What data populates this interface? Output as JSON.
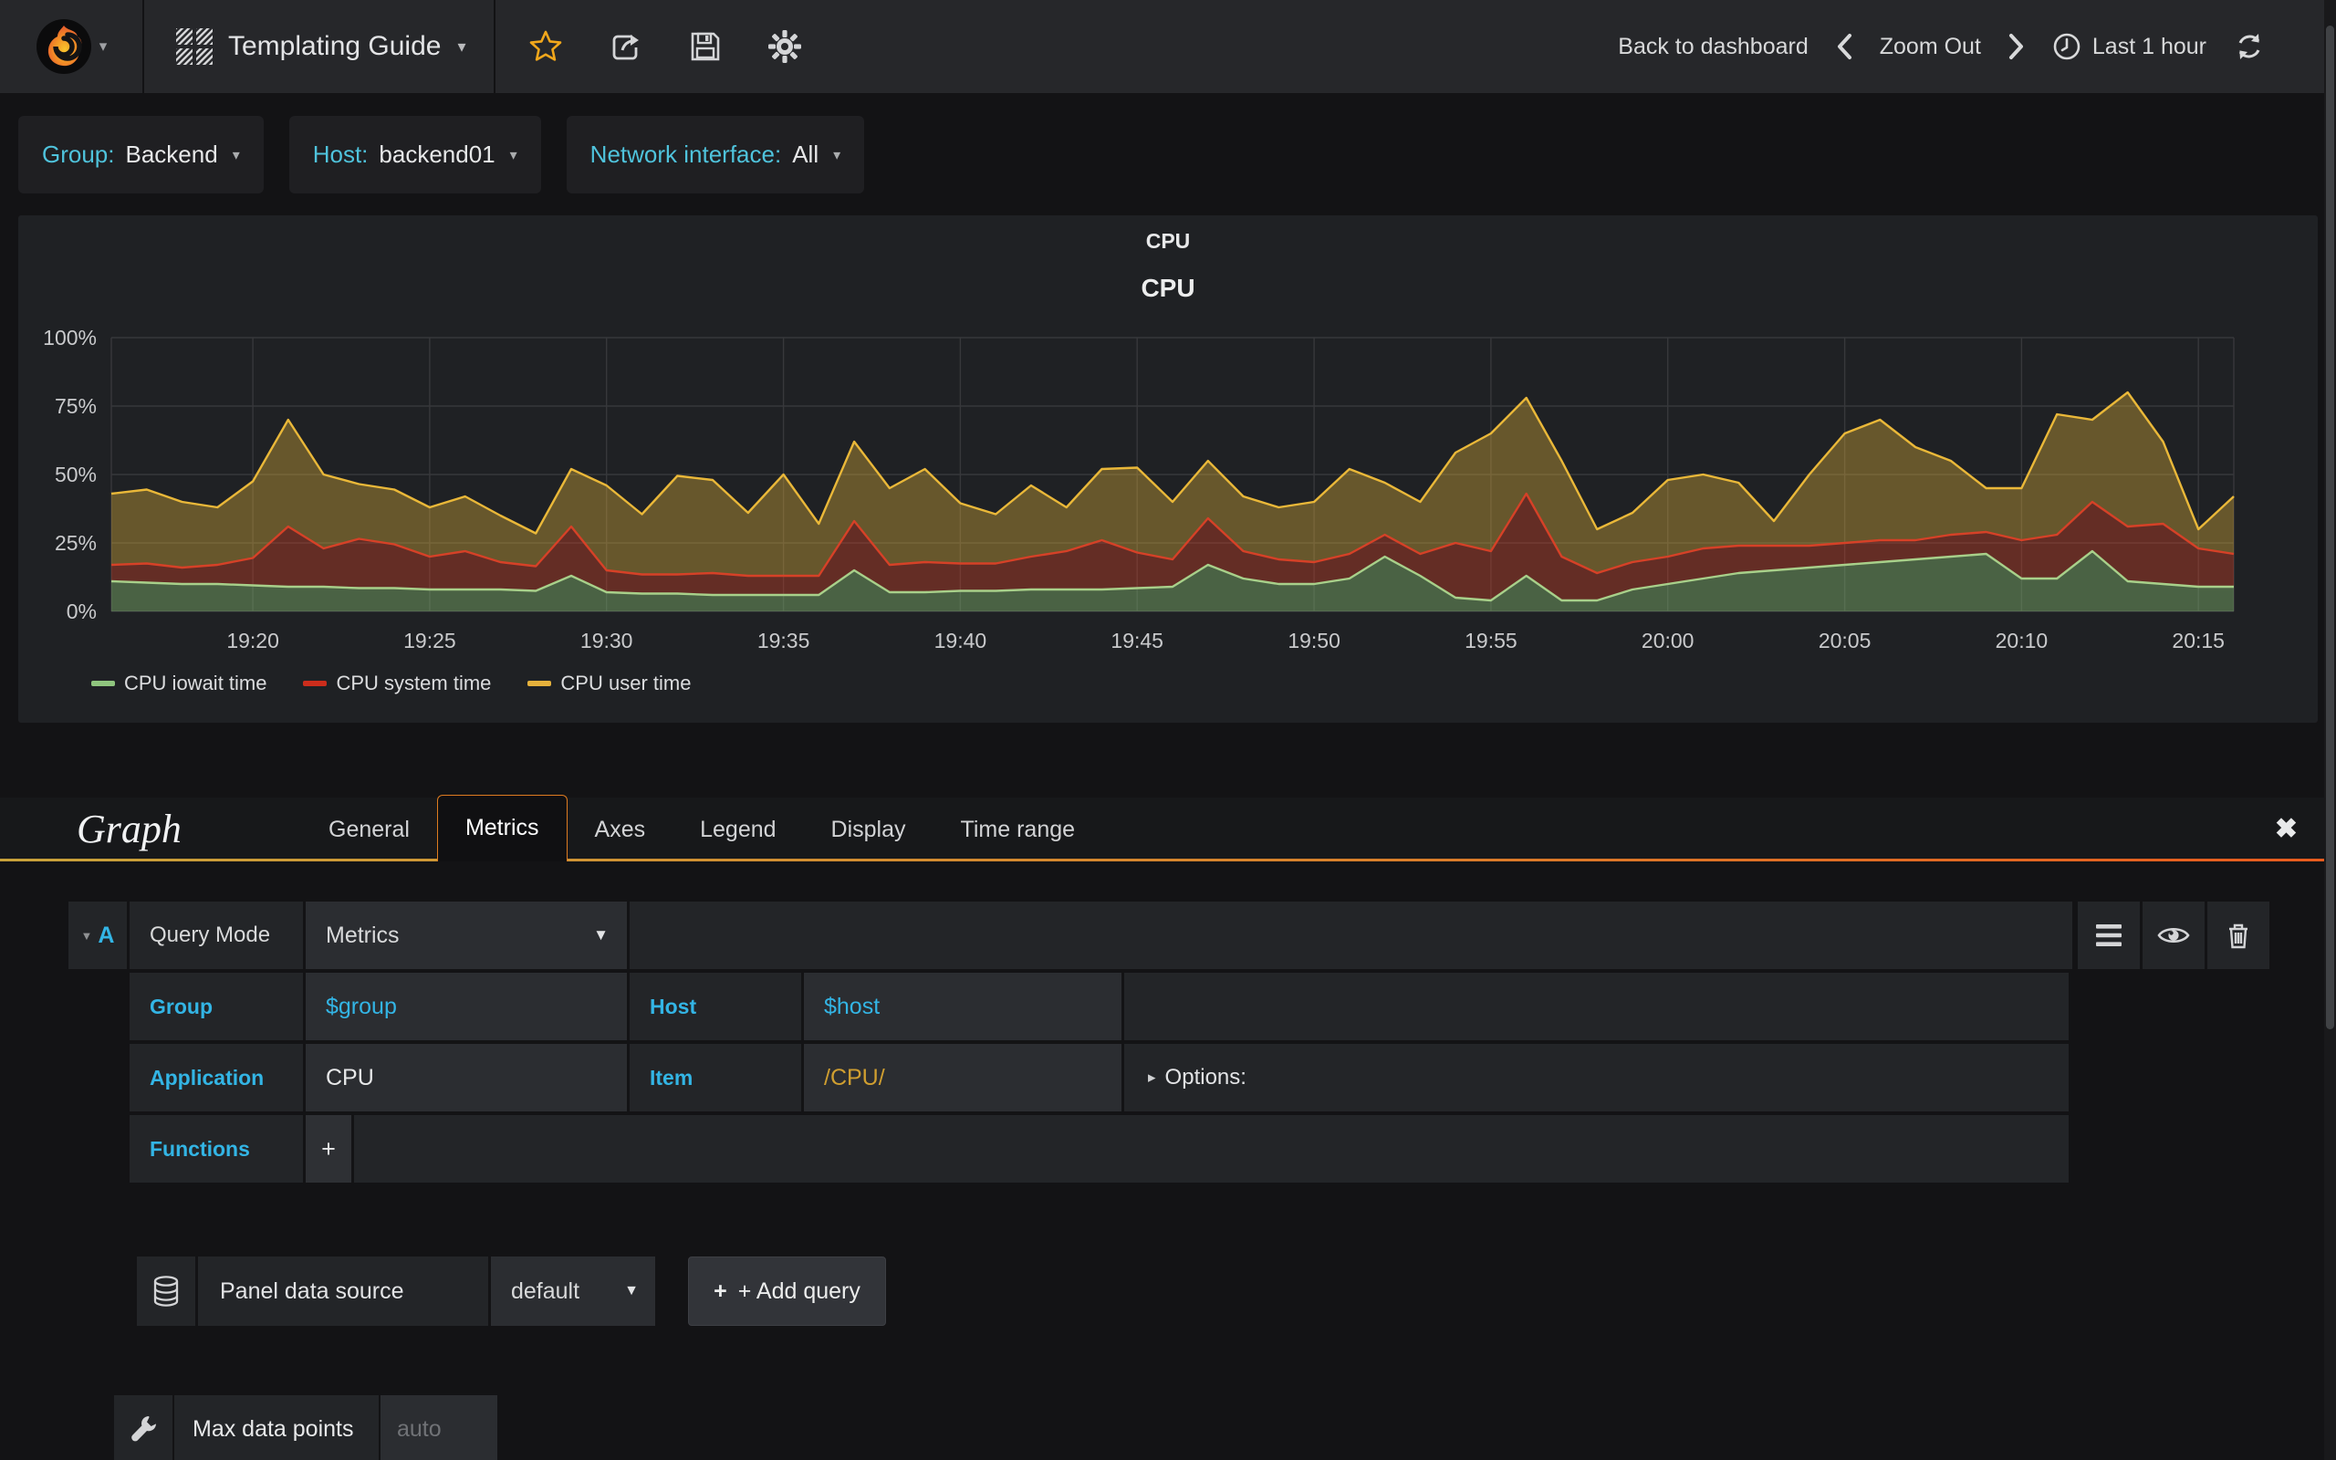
{
  "navbar": {
    "dashboard_title": "Templating Guide",
    "back_to_dashboard": "Back to dashboard",
    "zoom_out": "Zoom Out",
    "time_range": "Last 1 hour"
  },
  "variables": [
    {
      "label": "Group:",
      "value": "Backend"
    },
    {
      "label": "Host:",
      "value": "backend01"
    },
    {
      "label": "Network interface:",
      "value": "All"
    }
  ],
  "panel": {
    "title": "CPU",
    "graph_title": "CPU"
  },
  "chart_data": {
    "type": "area",
    "stacked": true,
    "title": "CPU",
    "ylabel": "percent",
    "ylim": [
      0,
      100
    ],
    "yticks": [
      0,
      25,
      50,
      75,
      100
    ],
    "ytick_suffix": "%",
    "x_start": "19:16",
    "x_end": "20:16",
    "x_ticks": [
      {
        "t": 4,
        "label": "19:20"
      },
      {
        "t": 9,
        "label": "19:25"
      },
      {
        "t": 14,
        "label": "19:30"
      },
      {
        "t": 19,
        "label": "19:35"
      },
      {
        "t": 24,
        "label": "19:40"
      },
      {
        "t": 29,
        "label": "19:45"
      },
      {
        "t": 34,
        "label": "19:50"
      },
      {
        "t": 39,
        "label": "19:55"
      },
      {
        "t": 44,
        "label": "20:00"
      },
      {
        "t": 49,
        "label": "20:05"
      },
      {
        "t": 54,
        "label": "20:10"
      },
      {
        "t": 59,
        "label": "20:15"
      }
    ],
    "legend_position": "bottom",
    "grid": true,
    "series": [
      {
        "name": "CPU iowait time",
        "color": "#A8D08A",
        "swatch": "#8fc57e",
        "fill": "rgba(126,178,109,0.45)",
        "values": [
          11,
          10.5,
          10,
          10,
          9.5,
          9,
          9,
          8.5,
          8.5,
          8,
          8,
          8,
          7.5,
          13,
          7,
          6.5,
          6.5,
          6,
          6,
          6,
          6,
          15,
          7,
          7,
          7.5,
          7.5,
          8,
          8,
          8,
          8.5,
          9,
          17,
          12,
          10,
          10,
          12,
          20,
          13,
          5,
          4,
          13,
          4,
          4,
          8,
          10,
          12,
          14,
          15,
          16,
          17,
          18,
          19,
          20,
          21,
          12,
          12,
          22,
          11,
          10,
          9,
          9
        ]
      },
      {
        "name": "CPU system time",
        "color": "#D64127",
        "swatch": "#cc2d1c",
        "fill": "rgba(214,65,39,0.38)",
        "values": [
          6,
          7,
          6,
          7,
          10,
          22,
          14,
          18,
          16,
          12,
          14,
          10,
          9,
          18,
          8,
          7,
          7,
          8,
          7,
          7,
          7,
          18,
          10,
          11,
          10,
          10,
          12,
          14,
          18,
          13,
          10,
          17,
          10,
          9,
          8,
          9,
          8,
          8,
          20,
          18,
          30,
          16,
          10,
          10,
          10,
          11,
          10,
          9,
          8,
          8,
          8,
          7,
          8,
          8,
          14,
          16,
          18,
          20,
          22,
          14,
          12
        ]
      },
      {
        "name": "CPU user time",
        "color": "#EAB839",
        "swatch": "#e5b13c",
        "fill": "rgba(234,184,57,0.36)",
        "values": [
          26,
          27,
          24,
          21,
          28,
          39,
          27,
          20,
          20,
          18,
          20,
          17,
          12,
          21,
          31,
          22,
          36,
          34,
          23,
          37,
          19,
          29,
          28,
          34,
          22,
          18,
          26,
          16,
          26,
          31,
          21,
          21,
          20,
          19,
          22,
          31,
          19,
          19,
          33,
          43,
          35,
          35,
          16,
          18,
          28,
          27,
          23,
          9,
          26,
          40,
          44,
          34,
          27,
          16,
          19,
          44,
          30,
          49,
          30,
          7,
          21
        ]
      }
    ]
  },
  "editor": {
    "panel_type": "Graph",
    "tabs": [
      "General",
      "Metrics",
      "Axes",
      "Legend",
      "Display",
      "Time range"
    ],
    "active_tab": "Metrics",
    "query": {
      "ref_id": "A",
      "query_mode_label": "Query Mode",
      "query_mode_value": "Metrics",
      "group_label": "Group",
      "group_value": "$group",
      "host_label": "Host",
      "host_value": "$host",
      "application_label": "Application",
      "application_value": "CPU",
      "item_label": "Item",
      "item_value": "/CPU/",
      "options_label": "Options:",
      "functions_label": "Functions",
      "add_function_label": "+"
    },
    "datasource": {
      "label": "Panel data source",
      "value": "default",
      "add_query_label": "+ Add query"
    },
    "max_data_points": {
      "label": "Max data points",
      "placeholder": "auto"
    }
  },
  "colors": {
    "accent_cyan": "#33b5e5",
    "variable_label_cyan": "#4fc3dc",
    "item_regex_orange": "#cf9e30",
    "value_white": "#e7e8e9",
    "tab_underline_left": "#c9a23a",
    "tab_underline_right": "#e85b1e",
    "star_orange": "#f2a71b"
  }
}
